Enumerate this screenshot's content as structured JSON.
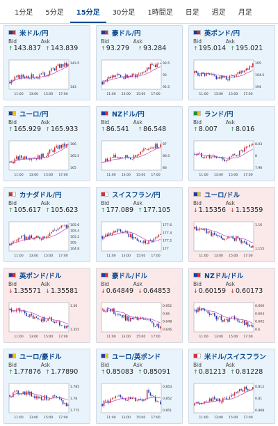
{
  "tabs": [
    {
      "label": "1分足",
      "active": false
    },
    {
      "label": "5分足",
      "active": false
    },
    {
      "label": "15分足",
      "active": true
    },
    {
      "label": "30分足",
      "active": false
    },
    {
      "label": "1時間足",
      "active": false
    },
    {
      "label": "日足",
      "active": false
    },
    {
      "label": "週足",
      "active": false
    },
    {
      "label": "月足",
      "active": false
    }
  ],
  "labels": {
    "bid": "Bid",
    "ask": "Ask"
  },
  "x_ticks": [
    "11:00",
    "13:00",
    "15:00",
    "17:00"
  ],
  "colors": {
    "up_card": "#e8f3fc",
    "down_card": "#fbe9ea",
    "up_candle": "#d32f2f",
    "down_candle": "#1e3aa8",
    "ma_line": "#c040c0",
    "up_arrow": "#2b8a3e",
    "down_arrow": "#c62828"
  },
  "cards": [
    {
      "name": "米ドル/円",
      "flag": [
        "#1e3aa8",
        "#d32f2f"
      ],
      "direction": "up",
      "bid": "143.837",
      "ask": "143.839",
      "yticks": [
        "143.5",
        "143"
      ],
      "trend": "up"
    },
    {
      "name": "豪ドル/円",
      "flag": [
        "#1e3aa8",
        "#d32f2f"
      ],
      "direction": "up",
      "bid": "93.279",
      "ask": "93.284",
      "yticks": [
        "93.5",
        "93",
        "92.5"
      ],
      "trend": "up"
    },
    {
      "name": "英ポンド/円",
      "flag": [
        "#1e3aa8",
        "#d32f2f"
      ],
      "direction": "up",
      "bid": "195.014",
      "ask": "195.021",
      "yticks": [
        "195",
        "194.5",
        "194"
      ],
      "trend": "vup"
    },
    {
      "name": "ユーロ/円",
      "flag": [
        "#1e3aa8",
        "#f2c200"
      ],
      "direction": "up",
      "bid": "165.929",
      "ask": "165.933",
      "yticks": [
        "166",
        "165.5",
        "165"
      ],
      "trend": "up"
    },
    {
      "name": "NZドル/円",
      "flag": [
        "#1e3aa8",
        "#d32f2f"
      ],
      "direction": "up",
      "bid": "86.541",
      "ask": "86.548",
      "yticks": [
        "87",
        "86.5",
        "86"
      ],
      "trend": "up"
    },
    {
      "name": "ランド/円",
      "flag": [
        "#2b8a3e",
        "#f2c200"
      ],
      "direction": "up",
      "bid": "8.007",
      "ask": "8.016",
      "yticks": [
        "8.03",
        "8",
        "7.98"
      ],
      "trend": "vup"
    },
    {
      "name": "カナダドル/円",
      "flag": [
        "#d32f2f",
        "#ffffff"
      ],
      "direction": "up",
      "bid": "105.617",
      "ask": "105.623",
      "yticks": [
        "105.6",
        "105.4",
        "105.2",
        "105",
        "104.8"
      ],
      "trend": "up"
    },
    {
      "name": "スイスフラン/円",
      "flag": [
        "#d32f2f",
        "#ffffff"
      ],
      "direction": "up",
      "bid": "177.089",
      "ask": "177.105",
      "yticks": [
        "177.6",
        "177.4",
        "177.2",
        "177"
      ],
      "trend": "mid"
    },
    {
      "name": "ユーロ/ドル",
      "flag": [
        "#1e3aa8",
        "#f2c200"
      ],
      "direction": "down",
      "bid": "1.15356",
      "ask": "1.15359",
      "yticks": [
        "1.16",
        "1.155"
      ],
      "trend": "down"
    },
    {
      "name": "英ポンド/ドル",
      "flag": [
        "#1e3aa8",
        "#d32f2f"
      ],
      "direction": "down",
      "bid": "1.35571",
      "ask": "1.35581",
      "yticks": [
        "1.36",
        "1.355"
      ],
      "trend": "down"
    },
    {
      "name": "豪ドル/ドル",
      "flag": [
        "#1e3aa8",
        "#d32f2f"
      ],
      "direction": "down",
      "bid": "0.64849",
      "ask": "0.64853",
      "yticks": [
        "0.652",
        "0.65",
        "0.648",
        "0.646"
      ],
      "trend": "down"
    },
    {
      "name": "NZドル/ドル",
      "flag": [
        "#1e3aa8",
        "#d32f2f"
      ],
      "direction": "down",
      "bid": "0.60159",
      "ask": "0.60173",
      "yticks": [
        "0.606",
        "0.604",
        "0.602",
        "0.6"
      ],
      "trend": "down"
    },
    {
      "name": "ユーロ/豪ドル",
      "flag": [
        "#1e3aa8",
        "#f2c200"
      ],
      "direction": "up",
      "bid": "1.77876",
      "ask": "1.77890",
      "yticks": [
        "1.785",
        "1.78",
        "1.775"
      ],
      "trend": "dip"
    },
    {
      "name": "ユーロ/英ポンド",
      "flag": [
        "#1e3aa8",
        "#f2c200"
      ],
      "direction": "up",
      "bid": "0.85083",
      "ask": "0.85091",
      "yticks": [
        "0.853",
        "0.852",
        "0.851"
      ],
      "trend": "spike"
    },
    {
      "name": "米ドル/スイスフラン",
      "flag": [
        "#d32f2f",
        "#ffffff"
      ],
      "direction": "up",
      "bid": "0.81213",
      "ask": "0.81228",
      "yticks": [
        "0.812",
        "0.81",
        "0.808"
      ],
      "trend": "up"
    }
  ]
}
